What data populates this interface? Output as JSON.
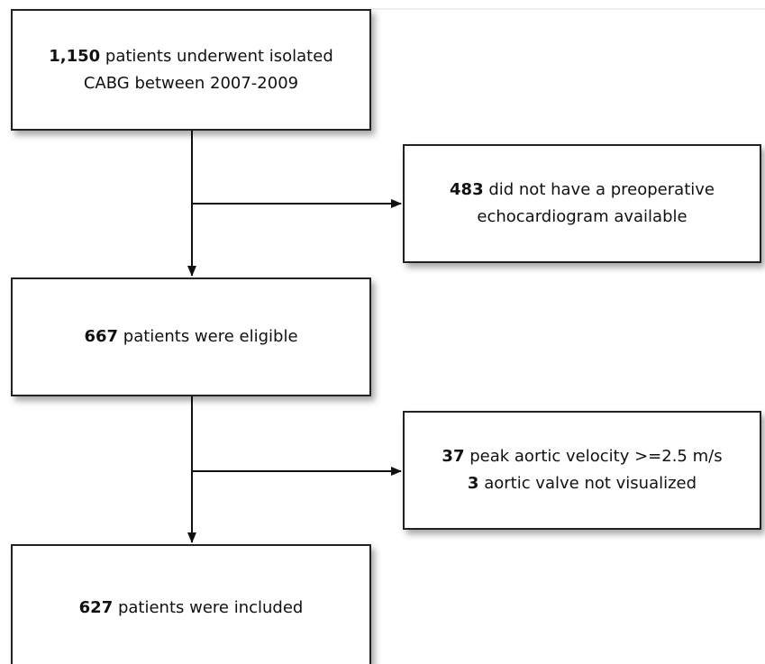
{
  "nodes": [
    {
      "lines": [
        {
          "bold": "1,150",
          "text": "patients underwent isolated"
        },
        {
          "text": "CABG between 2007-2009"
        }
      ]
    },
    {
      "lines": [
        {
          "bold": "483",
          "text": "did not have a preoperative"
        },
        {
          "text": "echocardiogram available"
        }
      ]
    },
    {
      "lines": [
        {
          "bold": "667",
          "text": "patients were eligible"
        }
      ]
    },
    {
      "lines": [
        {
          "bold": "37",
          "text": "peak aortic velocity >=2.5 m/s"
        },
        {
          "bold": "3",
          "text": "aortic valve not visualized"
        }
      ]
    },
    {
      "lines": [
        {
          "bold": "627",
          "text": "patients were included"
        }
      ]
    }
  ]
}
